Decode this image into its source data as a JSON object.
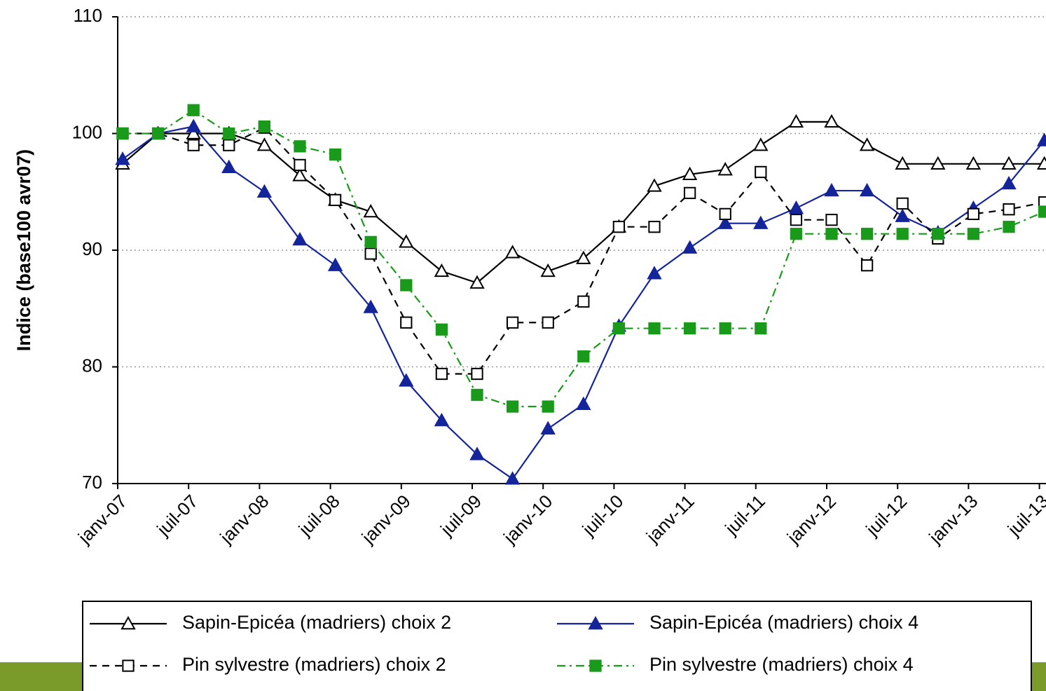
{
  "chart_data": {
    "type": "line",
    "y_label": "Indice (base100 avr07)",
    "categories": [
      "janv-07",
      null,
      "juil-07",
      null,
      "janv-08",
      null,
      "juil-08",
      null,
      "janv-09",
      null,
      "juil-09",
      null,
      "janv-10",
      null,
      "juil-10",
      null,
      "janv-11",
      null,
      "juil-11",
      null,
      "janv-12",
      null,
      "juil-12",
      null,
      "janv-13",
      null,
      "juil-13"
    ],
    "ylim": [
      70,
      110
    ],
    "yticks": [
      70,
      80,
      90,
      100,
      110
    ],
    "grid": true,
    "series": [
      {
        "name": "Sapin-Epicéa (madriers) choix 2",
        "color": "#000000",
        "marker": "triangle-open",
        "dash": "solid",
        "values": [
          97.4,
          100,
          100,
          100,
          99,
          96.4,
          94.3,
          93.3,
          90.7,
          88.2,
          87.2,
          89.8,
          88.2,
          89.3,
          92,
          95.5,
          96.5,
          96.9,
          99,
          101,
          101,
          99,
          97.4,
          97.4,
          97.4,
          97.4,
          97.4
        ]
      },
      {
        "name": "Sapin-Epicéa (madriers) choix 4",
        "color": "#14249b",
        "marker": "triangle-filled",
        "dash": "solid",
        "values": [
          97.8,
          100,
          100.6,
          97.1,
          95,
          90.9,
          88.7,
          85.1,
          78.8,
          75.4,
          72.5,
          70.4,
          74.7,
          76.8,
          83.5,
          88,
          90.2,
          92.3,
          92.3,
          93.6,
          95.1,
          95.1,
          92.9,
          91.5,
          93.6,
          95.7,
          99.4
        ]
      },
      {
        "name": "Pin sylvestre (madriers) choix 2",
        "color": "#000000",
        "marker": "square-open",
        "dash": "dashed",
        "values": [
          100,
          100,
          99,
          99,
          100.5,
          97.3,
          94.3,
          89.7,
          83.8,
          79.4,
          79.4,
          83.8,
          83.8,
          85.6,
          92,
          92,
          94.9,
          93.1,
          96.7,
          92.6,
          92.6,
          88.7,
          94,
          91,
          93.1,
          93.5,
          94.1
        ]
      },
      {
        "name": "Pin sylvestre (madriers) choix 4",
        "color": "#1a9a1a",
        "marker": "square-filled",
        "dash": "dashdot",
        "values": [
          100,
          100,
          102,
          100,
          100.6,
          98.9,
          98.2,
          90.7,
          87,
          83.2,
          77.6,
          76.6,
          76.6,
          80.9,
          83.3,
          83.3,
          83.3,
          83.3,
          83.3,
          91.4,
          91.4,
          91.4,
          91.4,
          91.4,
          91.4,
          92,
          93.3
        ]
      }
    ]
  }
}
